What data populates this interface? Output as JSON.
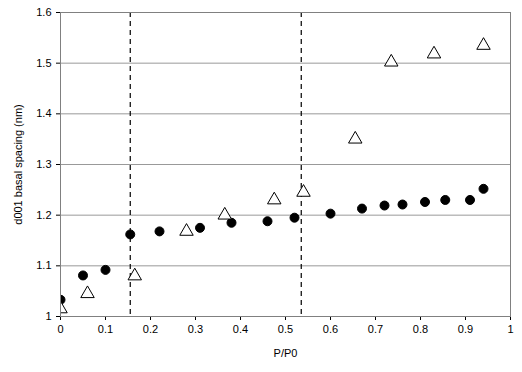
{
  "chart_data": {
    "type": "scatter",
    "x_label": "P/P0",
    "y_label": "d001 basal spacing (nm)",
    "xlim": [
      0,
      1
    ],
    "xticks": [
      0,
      0.1,
      0.2,
      0.3,
      0.4,
      0.5,
      0.6,
      0.7,
      0.8,
      0.9,
      1
    ],
    "ylim": [
      1,
      1.6
    ],
    "yticks": [
      1,
      1.1,
      1.2,
      1.3,
      1.4,
      1.5,
      1.6
    ],
    "grid": "y",
    "series": [
      {
        "color": "#000000",
        "marker": "circle",
        "x": [
          0,
          0.05,
          0.1,
          0.155,
          0.22,
          0.31,
          0.38,
          0.46,
          0.52,
          0.6,
          0.67,
          0.72,
          0.76,
          0.81,
          0.855,
          0.91,
          0.94
        ],
        "values": [
          1.033,
          1.081,
          1.092,
          1.162,
          1.168,
          1.175,
          1.185,
          1.188,
          1.195,
          1.203,
          1.213,
          1.219,
          1.221,
          1.226,
          1.23,
          1.23,
          1.252
        ]
      },
      {
        "color": "#000000",
        "marker": "triangle_open",
        "x": [
          0,
          0.06,
          0.165,
          0.28,
          0.365,
          0.475,
          0.54,
          0.655,
          0.735,
          0.83,
          0.94
        ],
        "values": [
          1.015,
          1.045,
          1.08,
          1.168,
          1.2,
          1.23,
          1.245,
          1.35,
          1.502,
          1.518,
          1.535
        ]
      }
    ],
    "annotations": [
      {
        "type": "vline",
        "x": 0.155,
        "line_style": "dashed",
        "color": "#000000"
      },
      {
        "type": "vline",
        "x": 0.535,
        "line_style": "dashed",
        "color": "#000000"
      }
    ]
  }
}
